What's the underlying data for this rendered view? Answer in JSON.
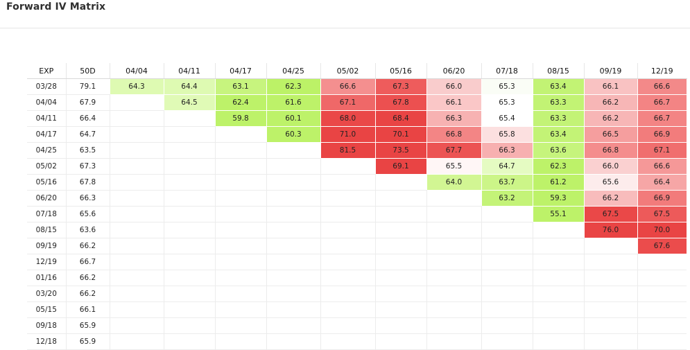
{
  "title": "Forward IV Matrix",
  "table": {
    "headers": [
      "EXP",
      "50D",
      "04/04",
      "04/11",
      "04/17",
      "04/25",
      "05/02",
      "05/16",
      "06/20",
      "07/18",
      "08/15",
      "09/19",
      "12/19"
    ],
    "rows": [
      {
        "exp": "03/28",
        "d50": "79.1",
        "cells": [
          {
            "v": "64.3",
            "bg": "#defab2"
          },
          {
            "v": "64.4",
            "bg": "#defab2"
          },
          {
            "v": "63.1",
            "bg": "#c7f47e"
          },
          {
            "v": "62.3",
            "bg": "#bcf267"
          },
          {
            "v": "66.6",
            "bg": "#f48f8f"
          },
          {
            "v": "67.3",
            "bg": "#ee5c5c"
          },
          {
            "v": "66.0",
            "bg": "#f9cccc"
          },
          {
            "v": "65.3",
            "bg": "#fafdf6"
          },
          {
            "v": "63.4",
            "bg": "#c2f374"
          },
          {
            "v": "66.1",
            "bg": "#f9c2c2"
          },
          {
            "v": "66.6",
            "bg": "#f38989"
          }
        ]
      },
      {
        "exp": "04/04",
        "d50": "67.9",
        "cells": [
          null,
          {
            "v": "64.5",
            "bg": "#e0fab6"
          },
          {
            "v": "62.4",
            "bg": "#bdf269"
          },
          {
            "v": "61.6",
            "bg": "#bdf269"
          },
          {
            "v": "67.1",
            "bg": "#ef6868"
          },
          {
            "v": "67.8",
            "bg": "#ec5050"
          },
          {
            "v": "66.1",
            "bg": "#fac7c7"
          },
          {
            "v": "65.3",
            "bg": "#ffffff"
          },
          {
            "v": "63.3",
            "bg": "#c2f374"
          },
          {
            "v": "66.2",
            "bg": "#f7b6b6"
          },
          {
            "v": "66.7",
            "bg": "#f38484"
          }
        ]
      },
      {
        "exp": "04/11",
        "d50": "66.4",
        "cells": [
          null,
          null,
          {
            "v": "59.8",
            "bg": "#bdf269"
          },
          {
            "v": "60.1",
            "bg": "#bdf269"
          },
          {
            "v": "68.0",
            "bg": "#ea4848"
          },
          {
            "v": "68.4",
            "bg": "#e94444"
          },
          {
            "v": "66.3",
            "bg": "#f7b2b2"
          },
          {
            "v": "65.4",
            "bg": "#ffffff"
          },
          {
            "v": "63.3",
            "bg": "#c3f376"
          },
          {
            "v": "66.2",
            "bg": "#f7b6b6"
          },
          {
            "v": "66.7",
            "bg": "#f38484"
          }
        ]
      },
      {
        "exp": "04/17",
        "d50": "64.7",
        "cells": [
          null,
          null,
          null,
          {
            "v": "60.3",
            "bg": "#bdf269"
          },
          {
            "v": "71.0",
            "bg": "#e94444"
          },
          {
            "v": "70.1",
            "bg": "#e94444"
          },
          {
            "v": "66.8",
            "bg": "#f38585"
          },
          {
            "v": "65.8",
            "bg": "#fce0e0"
          },
          {
            "v": "63.4",
            "bg": "#c3f376"
          },
          {
            "v": "66.5",
            "bg": "#f59e9e"
          },
          {
            "v": "66.9",
            "bg": "#f27c7c"
          }
        ]
      },
      {
        "exp": "04/25",
        "d50": "63.5",
        "cells": [
          null,
          null,
          null,
          null,
          {
            "v": "81.5",
            "bg": "#e94444"
          },
          {
            "v": "73.5",
            "bg": "#e94444"
          },
          {
            "v": "67.7",
            "bg": "#ec5353"
          },
          {
            "v": "66.3",
            "bg": "#f7b0b0"
          },
          {
            "v": "63.6",
            "bg": "#c6f47c"
          },
          {
            "v": "66.8",
            "bg": "#f48d8d"
          },
          {
            "v": "67.1",
            "bg": "#f06e6e"
          }
        ]
      },
      {
        "exp": "05/02",
        "d50": "67.3",
        "cells": [
          null,
          null,
          null,
          null,
          null,
          {
            "v": "69.1",
            "bg": "#e94444"
          },
          {
            "v": "65.5",
            "bg": "#fff6f6"
          },
          {
            "v": "64.7",
            "bg": "#e5fbc2"
          },
          {
            "v": "62.3",
            "bg": "#bdf269"
          },
          {
            "v": "66.0",
            "bg": "#fad0d0"
          },
          {
            "v": "66.6",
            "bg": "#f59898"
          }
        ]
      },
      {
        "exp": "05/16",
        "d50": "67.8",
        "cells": [
          null,
          null,
          null,
          null,
          null,
          null,
          {
            "v": "64.0",
            "bg": "#d2f693"
          },
          {
            "v": "63.7",
            "bg": "#ccf588"
          },
          {
            "v": "61.2",
            "bg": "#bdf269"
          },
          {
            "v": "65.6",
            "bg": "#fdecec"
          },
          {
            "v": "66.4",
            "bg": "#f6a6a6"
          }
        ]
      },
      {
        "exp": "06/20",
        "d50": "66.3",
        "cells": [
          null,
          null,
          null,
          null,
          null,
          null,
          null,
          {
            "v": "63.2",
            "bg": "#c4f378"
          },
          {
            "v": "59.3",
            "bg": "#bdf269"
          },
          {
            "v": "66.2",
            "bg": "#f8bcbc"
          },
          {
            "v": "66.9",
            "bg": "#f27b7b"
          }
        ]
      },
      {
        "exp": "07/18",
        "d50": "65.6",
        "cells": [
          null,
          null,
          null,
          null,
          null,
          null,
          null,
          null,
          {
            "v": "55.1",
            "bg": "#bdf269"
          },
          {
            "v": "67.5",
            "bg": "#ea4848"
          },
          {
            "v": "67.5",
            "bg": "#ed5a5a"
          }
        ]
      },
      {
        "exp": "08/15",
        "d50": "63.6",
        "cells": [
          null,
          null,
          null,
          null,
          null,
          null,
          null,
          null,
          null,
          {
            "v": "76.0",
            "bg": "#e94444"
          },
          {
            "v": "70.0",
            "bg": "#e94444"
          }
        ]
      },
      {
        "exp": "09/19",
        "d50": "66.2",
        "cells": [
          null,
          null,
          null,
          null,
          null,
          null,
          null,
          null,
          null,
          null,
          {
            "v": "67.6",
            "bg": "#eb4c4c"
          }
        ]
      },
      {
        "exp": "12/19",
        "d50": "66.7",
        "cells": [
          null,
          null,
          null,
          null,
          null,
          null,
          null,
          null,
          null,
          null,
          null
        ]
      },
      {
        "exp": "01/16",
        "d50": "66.2",
        "cells": [
          null,
          null,
          null,
          null,
          null,
          null,
          null,
          null,
          null,
          null,
          null
        ]
      },
      {
        "exp": "03/20",
        "d50": "66.2",
        "cells": [
          null,
          null,
          null,
          null,
          null,
          null,
          null,
          null,
          null,
          null,
          null
        ]
      },
      {
        "exp": "05/15",
        "d50": "66.1",
        "cells": [
          null,
          null,
          null,
          null,
          null,
          null,
          null,
          null,
          null,
          null,
          null
        ]
      },
      {
        "exp": "09/18",
        "d50": "65.9",
        "cells": [
          null,
          null,
          null,
          null,
          null,
          null,
          null,
          null,
          null,
          null,
          null
        ]
      },
      {
        "exp": "12/18",
        "d50": "65.9",
        "cells": [
          null,
          null,
          null,
          null,
          null,
          null,
          null,
          null,
          null,
          null,
          null
        ]
      }
    ]
  }
}
